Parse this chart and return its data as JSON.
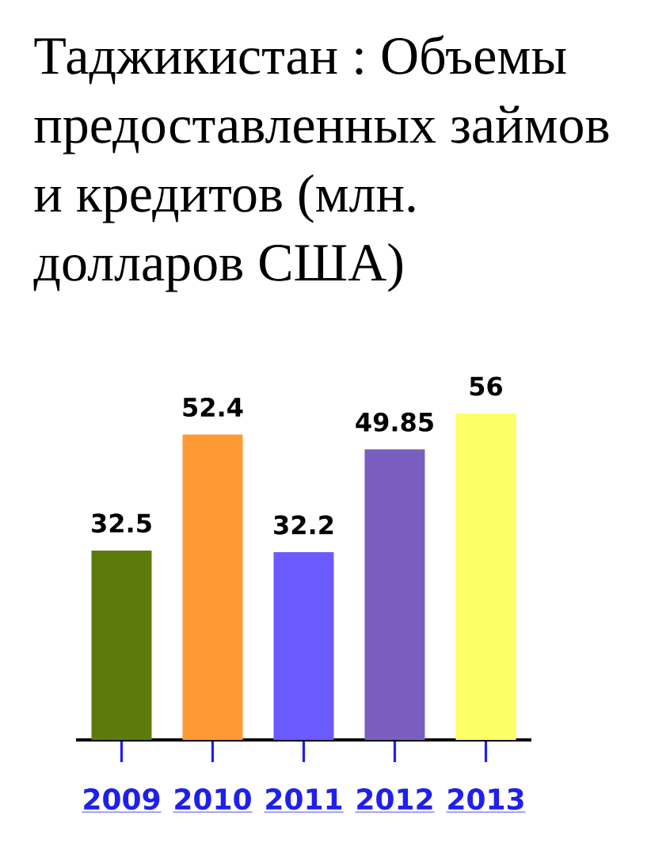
{
  "chart_data": {
    "type": "bar",
    "title": "Таджикистан : Объемы предоставленных займов и кредитов (млн. долларов США)",
    "categories": [
      "2009",
      "2010",
      "2011",
      "2012",
      "2013"
    ],
    "values": [
      32.5,
      52.4,
      32.2,
      49.85,
      56
    ],
    "colors": [
      "#5b7c0b",
      "#ff9933",
      "#6b5bff",
      "#7a5ebf",
      "#ffff66"
    ],
    "data_labels": true
  }
}
